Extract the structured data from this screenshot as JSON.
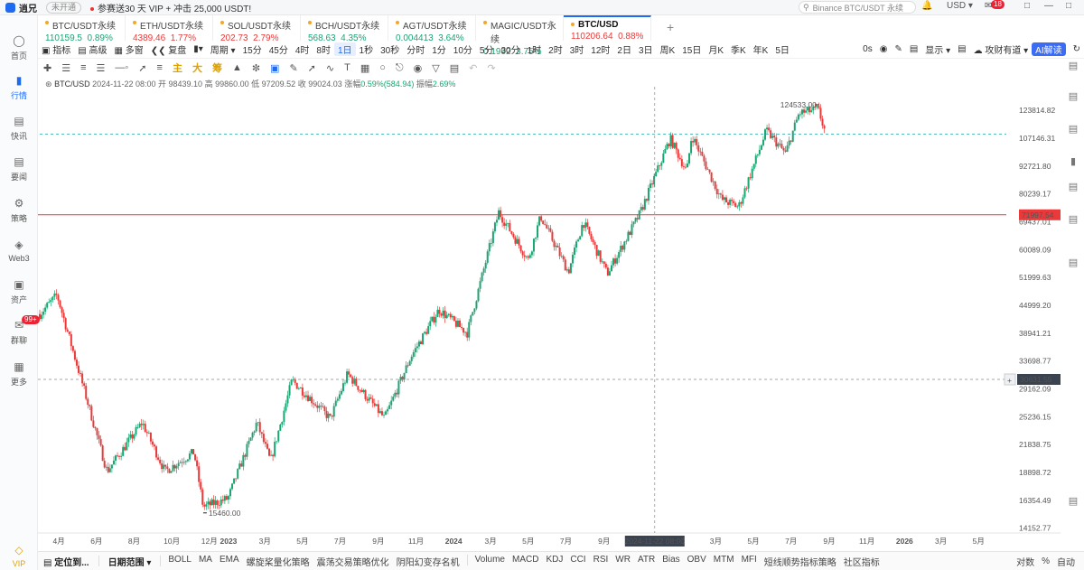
{
  "topbar": {
    "app_name": "逍兄",
    "status_pill": "未开通",
    "promo": "参赛送30 天 VIP + 冲击 25,000 USDT!",
    "search_placeholder": "Binance BTC/USDT 永续",
    "currency": "USD",
    "notif_count": "18"
  },
  "sidebar": [
    {
      "label": "首页",
      "icon": "home-icon"
    },
    {
      "label": "行情",
      "icon": "chart-icon",
      "active": true
    },
    {
      "label": "快讯",
      "icon": "news-icon"
    },
    {
      "label": "要闻",
      "icon": "headline-icon"
    },
    {
      "label": "策略",
      "icon": "strategy-icon"
    },
    {
      "label": "Web3",
      "icon": "web3-icon"
    },
    {
      "label": "资产",
      "icon": "asset-icon"
    },
    {
      "label": "群聊",
      "icon": "chat-icon",
      "badge": "99+"
    },
    {
      "label": "更多",
      "icon": "more-icon"
    },
    {
      "label": "VIP",
      "icon": "vip-icon"
    }
  ],
  "tickers": [
    {
      "name": "BTC/USDT永续",
      "price": "110159.5",
      "change": "0.89%",
      "dir": "up"
    },
    {
      "name": "ETH/USDT永续",
      "price": "4389.46",
      "change": "1.77%",
      "dir": "down"
    },
    {
      "name": "SOL/USDT永续",
      "price": "202.73",
      "change": "2.79%",
      "dir": "down"
    },
    {
      "name": "BCH/USDT永续",
      "price": "568.63",
      "change": "4.35%",
      "dir": "up"
    },
    {
      "name": "AGT/USDT永续",
      "price": "0.004413",
      "change": "3.64%",
      "dir": "up"
    },
    {
      "name": "MAGIC/USDT永续",
      "price": "0.1992",
      "change": "3.75%",
      "dir": "up"
    },
    {
      "name": "BTC/USD",
      "price": "110206.64",
      "change": "0.88%",
      "dir": "down",
      "selected": true
    }
  ],
  "toolbar": {
    "left": [
      "指标",
      "高级",
      "多窗",
      "复盘",
      "周期"
    ],
    "periods": [
      "15分",
      "45分",
      "4时",
      "8时",
      "1日",
      "1秒",
      "30秒",
      "分时",
      "1分",
      "10分",
      "5分",
      "30分",
      "1时",
      "2时",
      "3时",
      "12时",
      "2日",
      "3日",
      "周K",
      "15日",
      "月K",
      "季K",
      "年K",
      "5日"
    ],
    "active_period": "1日",
    "right": [
      "0s",
      "显示",
      "攻财有道",
      "AI解读"
    ]
  },
  "drawbar": [
    "主",
    "大",
    "筹"
  ],
  "legend": {
    "symbol": "BTC/USD",
    "date": "2024-11-22 08:00",
    "open": "开 98439.10",
    "high": "高 99860.00",
    "low": "低 97209.52",
    "close": "收 99024.03",
    "chg_label": "涨幅",
    "chg": "0.59%(584.94)",
    "amp_label": "振幅",
    "amp": "2.69%"
  },
  "chart_data": {
    "type": "candlestick",
    "title": "BTC/USD",
    "y_scale": "log",
    "ylim": [
      13800,
      140000
    ],
    "y_ticks": [
      123814.82,
      107146.31,
      92721.8,
      80239.17,
      69437.01,
      60089.09,
      51999.63,
      44999.2,
      38941.21,
      33698.77,
      29162.09,
      25236.15,
      21838.75,
      18898.72,
      16354.49,
      14152.77
    ],
    "x_ticks": [
      "4月",
      "6月",
      "8月",
      "10月",
      "12月",
      "2023",
      "3月",
      "5月",
      "7月",
      "9月",
      "11月",
      "2024",
      "3月",
      "5月",
      "7月",
      "9月",
      "2024-11-22 08:00",
      "5月",
      "3月",
      "5月",
      "7月",
      "9月",
      "11月",
      "2026",
      "3月",
      "5月"
    ],
    "x_range": [
      "2022-03-01",
      "2026-06-15"
    ],
    "high_label": "124533.00",
    "low_label": "15460.00",
    "price_line": {
      "value": "71997.54",
      "color": "#e83a3a"
    },
    "crosshair_value": "30631.55",
    "crosshair_date": "2024-11-22 08:00",
    "dashed_level": "109500",
    "up_color": "#1aa572",
    "down_color": "#e83a3a",
    "anchors": [
      [
        "2022-03-01",
        43000
      ],
      [
        "2022-03-29",
        47500
      ],
      [
        "2022-05-12",
        29000
      ],
      [
        "2022-06-18",
        19000
      ],
      [
        "2022-08-14",
        24500
      ],
      [
        "2022-09-20",
        19000
      ],
      [
        "2022-11-06",
        21000
      ],
      [
        "2022-11-21",
        15800
      ],
      [
        "2022-12-31",
        16500
      ],
      [
        "2023-02-16",
        24500
      ],
      [
        "2023-03-10",
        20000
      ],
      [
        "2023-04-14",
        30500
      ],
      [
        "2023-06-15",
        25000
      ],
      [
        "2023-07-13",
        31500
      ],
      [
        "2023-09-11",
        25000
      ],
      [
        "2023-10-24",
        34500
      ],
      [
        "2023-12-08",
        44000
      ],
      [
        "2024-01-23",
        39000
      ],
      [
        "2024-03-14",
        73000
      ],
      [
        "2024-05-01",
        57000
      ],
      [
        "2024-05-21",
        71500
      ],
      [
        "2024-07-05",
        53500
      ],
      [
        "2024-07-29",
        69500
      ],
      [
        "2024-09-06",
        53000
      ],
      [
        "2024-10-29",
        72500
      ],
      [
        "2024-12-17",
        107000
      ],
      [
        "2025-01-13",
        90000
      ],
      [
        "2025-01-21",
        109000
      ],
      [
        "2025-03-10",
        78000
      ],
      [
        "2025-04-07",
        75000
      ],
      [
        "2025-05-22",
        111500
      ],
      [
        "2025-06-22",
        99000
      ],
      [
        "2025-07-14",
        122000
      ],
      [
        "2025-08-14",
        124500
      ],
      [
        "2025-08-26",
        109800
      ]
    ]
  },
  "bottombar": {
    "left": [
      "定位到...",
      "日期范围"
    ],
    "items": [
      "BOLL",
      "MA",
      "EMA",
      "螺旋桨量化策略",
      "震荡交易策略优化",
      "阴阳幻变存名机",
      "Volume",
      "MACD",
      "KDJ",
      "CCI",
      "RSI",
      "WR",
      "ATR",
      "Bias",
      "OBV",
      "MTM",
      "MFI",
      "短线顺势指标策略",
      "社区指标"
    ],
    "right": [
      "对数",
      "%",
      "自动"
    ]
  }
}
